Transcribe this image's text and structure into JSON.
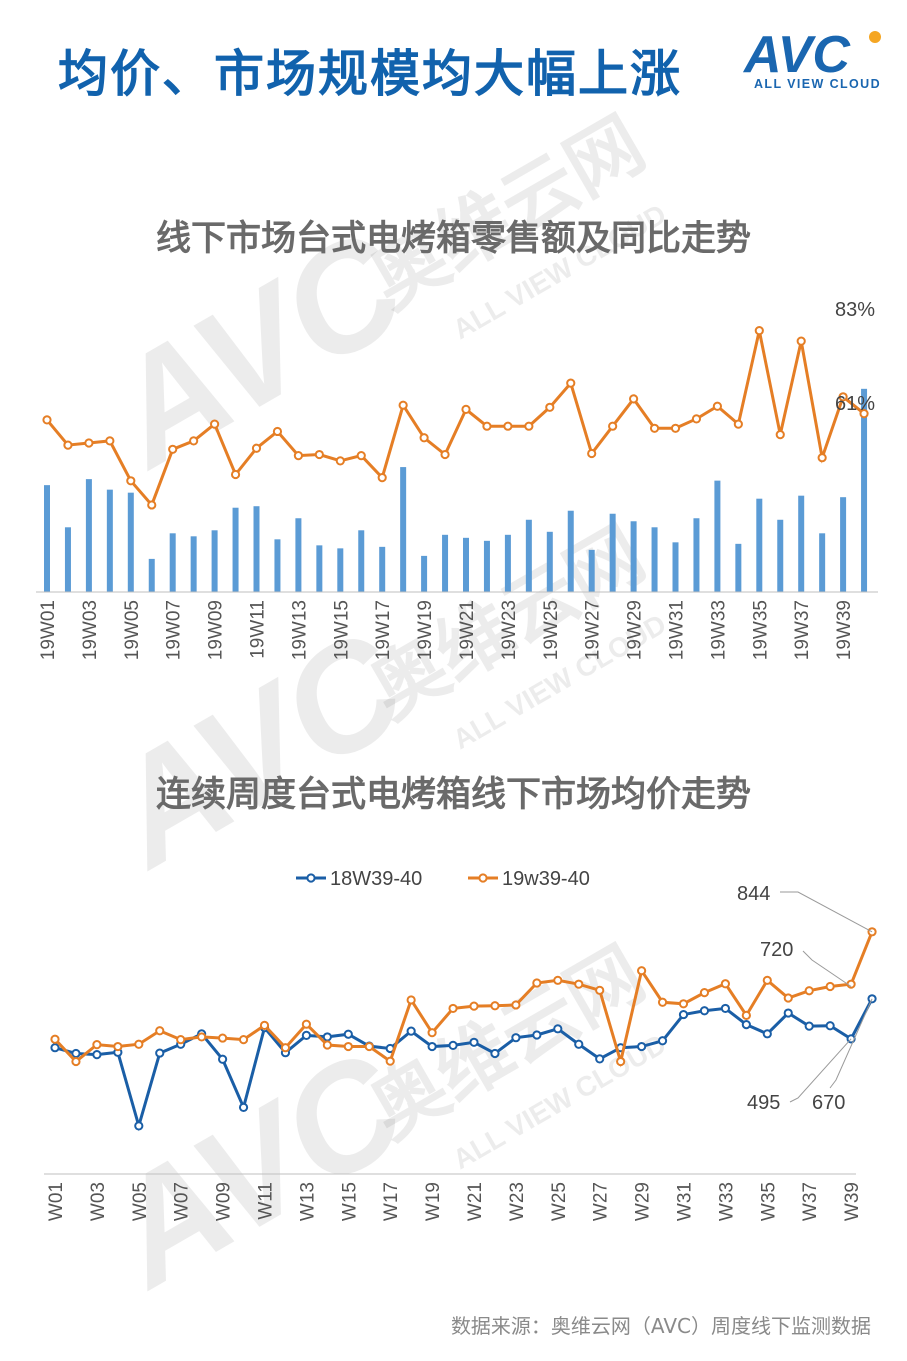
{
  "header": {
    "title": "均价、市场规模均大幅上涨",
    "logo_text": "AVC",
    "logo_tagline": "ALL VIEW CLOUD"
  },
  "watermark": {
    "brand": "AVC",
    "cn": "奥维云网",
    "en": "ALL VIEW CLOUD"
  },
  "colors": {
    "title_blue": "#1162ad",
    "orange": "#e57e25",
    "blue_line": "#1a5ea6",
    "bar_blue": "#5b9bd5",
    "logo_orange": "#f5a623"
  },
  "footer": {
    "source": "数据来源：奥维云网（AVC）周度线下监测数据"
  },
  "chart_data": [
    {
      "type": "bar+line",
      "title": "线下市场台式电烤箱零售额及同比走势",
      "categories": [
        "19W01",
        "19W02",
        "19W03",
        "19W04",
        "19W05",
        "19W06",
        "19W07",
        "19W08",
        "19W09",
        "19W10",
        "19W11",
        "19W12",
        "19W13",
        "19W14",
        "19W15",
        "19W16",
        "19W17",
        "19W18",
        "19W19",
        "19W20",
        "19W21",
        "19W22",
        "19W23",
        "19W24",
        "19W25",
        "19W26",
        "19W27",
        "19W28",
        "19W29",
        "19W30",
        "19W31",
        "19W32",
        "19W33",
        "19W34",
        "19W35",
        "19W36",
        "19W37",
        "19W38",
        "19W39",
        "19W40"
      ],
      "tick_labels": [
        "19W01",
        "19W03",
        "19W05",
        "19W07",
        "19W09",
        "19W11",
        "19W13",
        "19W15",
        "19W17",
        "19W19",
        "19W21",
        "19W23",
        "19W25",
        "19W27",
        "19W29",
        "19W31",
        "19W33",
        "19W35",
        "19W37",
        "19W39"
      ],
      "bars": [
        71,
        43,
        75,
        68,
        66,
        22,
        39,
        37,
        41,
        56,
        57,
        35,
        49,
        31,
        29,
        41,
        30,
        83,
        24,
        38,
        36,
        34,
        38,
        48,
        40,
        54,
        28,
        52,
        47,
        43,
        33,
        49,
        74,
        32,
        62,
        48,
        64,
        39,
        63,
        135
      ],
      "bars_note": "relative retail sales, no axis printed",
      "line": [
        22,
        -2,
        0,
        2,
        -36,
        -59,
        -6,
        2,
        18,
        -30,
        -5,
        11,
        -12,
        -11,
        -17,
        -12,
        -33,
        36,
        5,
        -11,
        32,
        16,
        16,
        16,
        34,
        57,
        -10,
        16,
        42,
        14,
        14,
        23,
        35,
        18,
        107,
        8,
        97,
        -14,
        44,
        28
      ],
      "line_unit": "%",
      "labels": [
        {
          "text": "83%"
        },
        {
          "text": "61%"
        }
      ]
    },
    {
      "type": "line",
      "title": "连续周度台式电烤箱线下市场均价走势",
      "categories": [
        "W01",
        "W02",
        "W03",
        "W04",
        "W05",
        "W06",
        "W07",
        "W08",
        "W09",
        "W10",
        "W11",
        "W12",
        "W13",
        "W14",
        "W15",
        "W16",
        "W17",
        "W18",
        "W19",
        "W20",
        "W21",
        "W22",
        "W23",
        "W24",
        "W25",
        "W26",
        "W27",
        "W28",
        "W29",
        "W30",
        "W31",
        "W32",
        "W33",
        "W34",
        "W35",
        "W36",
        "W37",
        "W38",
        "W39",
        "W40"
      ],
      "tick_labels": [
        "W01",
        "W03",
        "W05",
        "W07",
        "W09",
        "W11",
        "W13",
        "W15",
        "W17",
        "W19",
        "W21",
        "W23",
        "W25",
        "W27",
        "W29",
        "W31",
        "W33",
        "W35",
        "W37",
        "W39"
      ],
      "series": [
        {
          "name": "18W39-40",
          "color": "#1a5ea6",
          "values": [
            543,
            528,
            525,
            531,
            340,
            529,
            552,
            579,
            513,
            388,
            595,
            530,
            575,
            571,
            578,
            547,
            541,
            586,
            546,
            549,
            557,
            528,
            569,
            576,
            592,
            552,
            514,
            543,
            546,
            561,
            629,
            639,
            645,
            603,
            579,
            633,
            599,
            600,
            566,
            670
          ]
        },
        {
          "name": "19w39-40",
          "color": "#e57e25",
          "values": [
            565,
            507,
            551,
            546,
            552,
            587,
            564,
            571,
            568,
            564,
            601,
            543,
            604,
            550,
            546,
            546,
            508,
            667,
            582,
            645,
            651,
            652,
            654,
            711,
            718,
            708,
            692,
            507,
            743,
            661,
            657,
            686,
            709,
            627,
            718,
            672,
            691,
            702,
            708,
            844
          ]
        }
      ],
      "legend": "top-center",
      "annotations": [
        {
          "text": "844"
        },
        {
          "text": "720"
        },
        {
          "text": "495"
        },
        {
          "text": "670"
        }
      ]
    }
  ]
}
